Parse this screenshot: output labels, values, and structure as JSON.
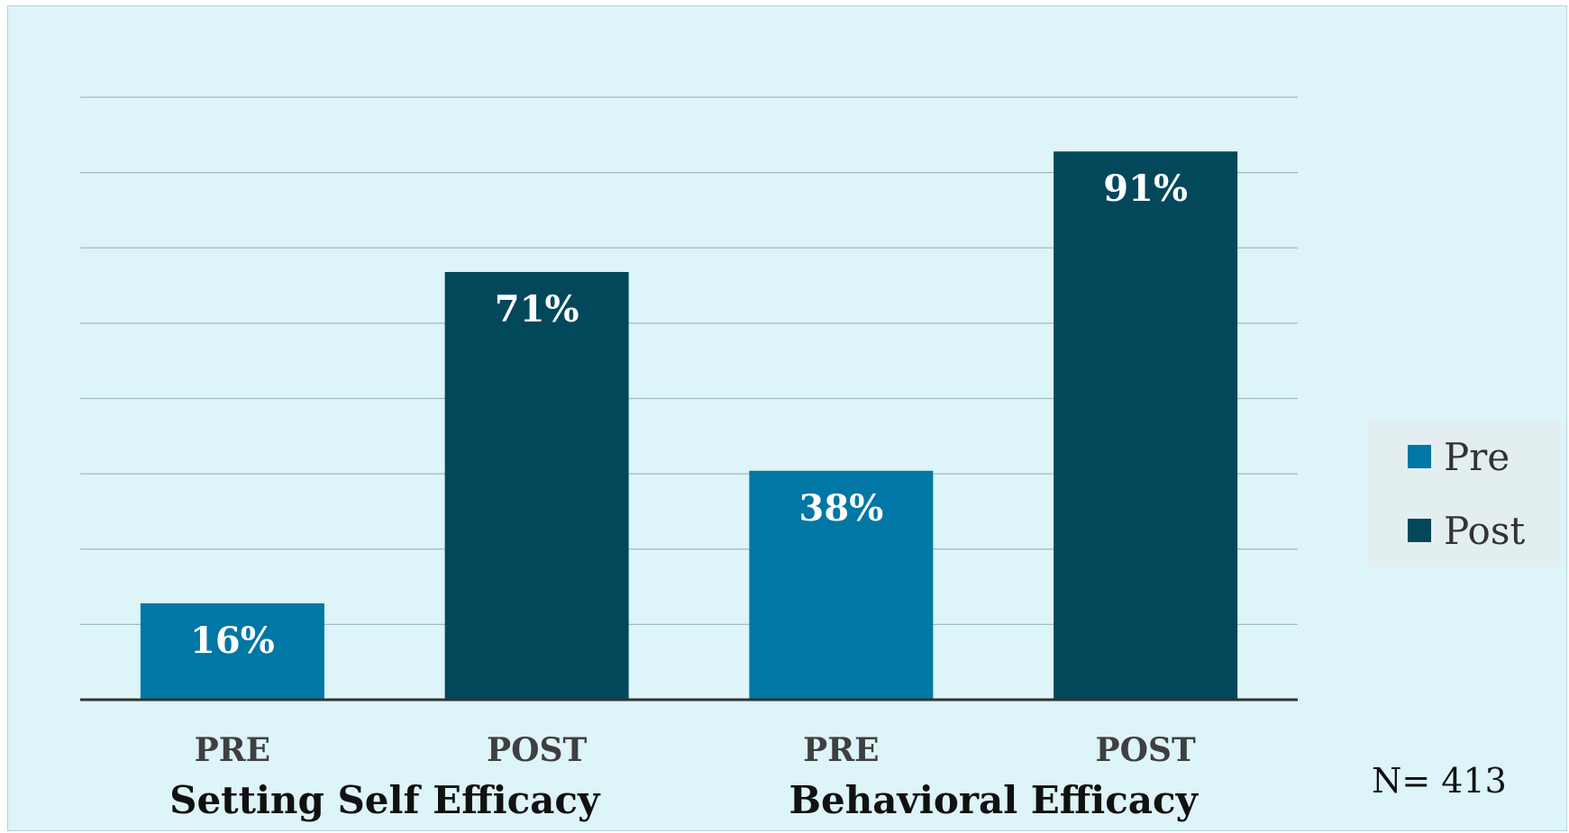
{
  "chart_data": {
    "type": "bar",
    "title": "",
    "xlabel": "",
    "ylabel": "",
    "ylim": [
      0,
      100
    ],
    "grid": true,
    "legend_position": "right",
    "groups": [
      {
        "label": "Setting Self Efficacy",
        "categories": [
          "PRE",
          "POST"
        ]
      },
      {
        "label": "Behavioral Efficacy",
        "categories": [
          "PRE",
          "POST"
        ]
      }
    ],
    "categories": [
      "PRE",
      "POST",
      "PRE",
      "POST"
    ],
    "values": [
      16,
      71,
      38,
      91
    ],
    "value_labels": [
      "16%",
      "71%",
      "38%",
      "91%"
    ],
    "series_of_bar": [
      "Pre",
      "Post",
      "Pre",
      "Post"
    ],
    "series": [
      {
        "name": "Pre",
        "color": "#0077a4"
      },
      {
        "name": "Post",
        "color": "#03475a"
      }
    ],
    "annotation": "N= 413"
  },
  "colors": {
    "background": "#ddf4f8",
    "gridline": "#9fbcc2",
    "axis": "#333333",
    "category_text": "#3f3f3f",
    "group_text": "#111111",
    "bar_label": "#ffffff",
    "legend_box": "#e3eef0"
  }
}
